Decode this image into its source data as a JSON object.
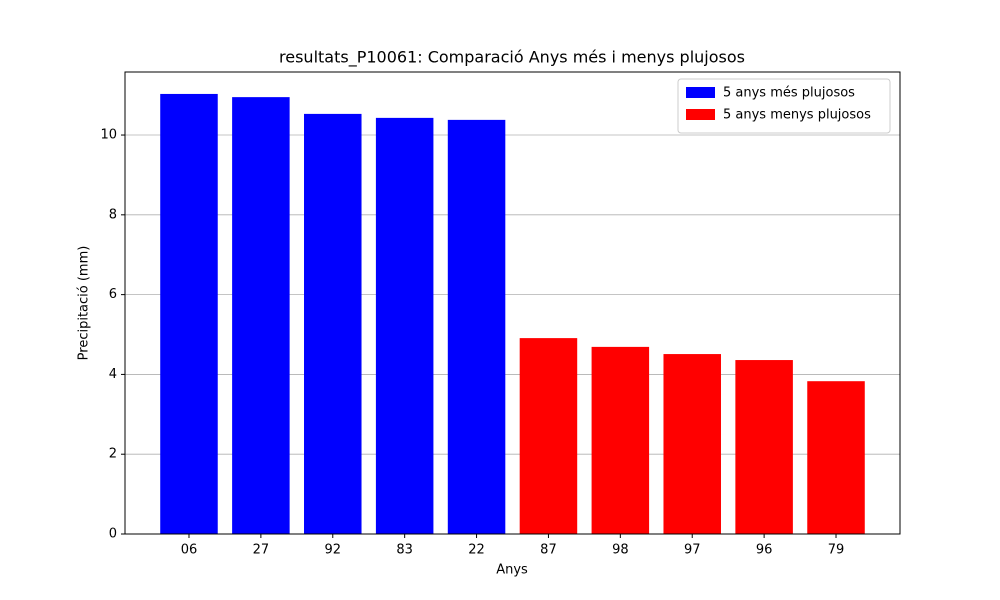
{
  "chart_data": {
    "type": "bar",
    "title": "resultats_P10061: Comparació Anys més i menys plujosos",
    "xlabel": "Anys",
    "ylabel": "Precipitació (mm)",
    "categories": [
      "06",
      "27",
      "92",
      "83",
      "22",
      "87",
      "98",
      "97",
      "96",
      "79"
    ],
    "series": [
      {
        "name": "5 anys més plujosos",
        "color": "#0000ff",
        "values": [
          11.03,
          10.95,
          10.53,
          10.43,
          10.38,
          null,
          null,
          null,
          null,
          null
        ]
      },
      {
        "name": "5 anys menys plujosos",
        "color": "#ff0000",
        "values": [
          null,
          null,
          null,
          null,
          null,
          4.91,
          4.69,
          4.51,
          4.36,
          3.83
        ]
      }
    ],
    "ylim": [
      0,
      11.58
    ],
    "yticks": [
      0,
      2,
      4,
      6,
      8,
      10
    ],
    "grid": true,
    "legend": "upper right"
  }
}
